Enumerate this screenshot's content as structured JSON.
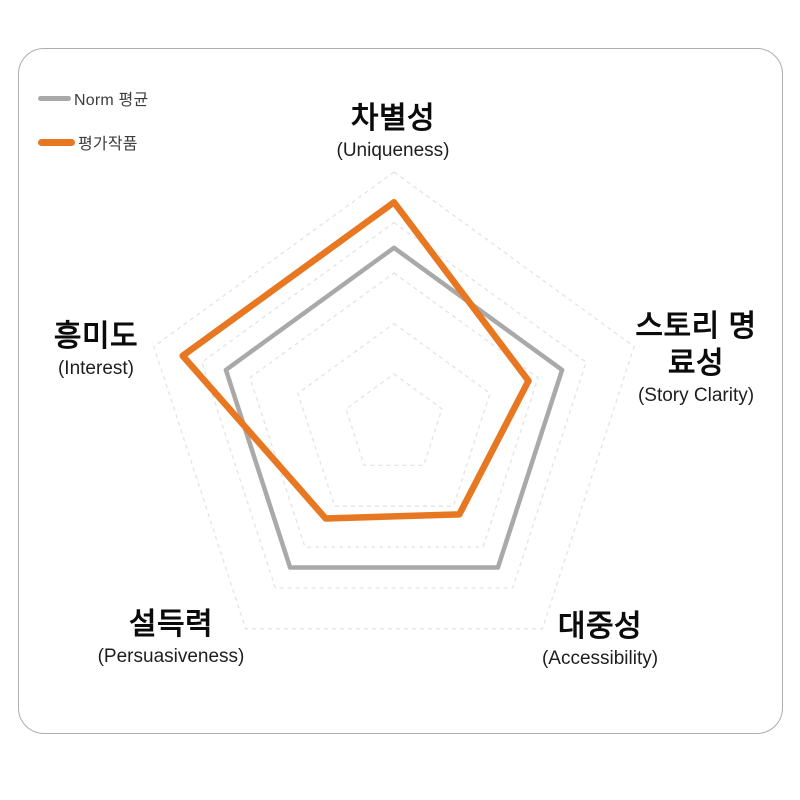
{
  "legend": {
    "items": [
      {
        "label": "Norm 평균",
        "color": "#A9A9A9"
      },
      {
        "label": "평가작품",
        "color": "#E87722"
      }
    ]
  },
  "chart_data": {
    "type": "radar",
    "categories": [
      {
        "ko": "차별성",
        "en": "(Uniqueness)"
      },
      {
        "ko": "스토리 명료성",
        "en": "(Story Clarity)"
      },
      {
        "ko": "대중성",
        "en": "(Accessibility)"
      },
      {
        "ko": "설득력",
        "en": "(Persuasiveness)"
      },
      {
        "ko": "흥미도",
        "en": "(Interest)"
      }
    ],
    "series": [
      {
        "name": "Norm 평균",
        "color": "#A9A9A9",
        "values": [
          3.5,
          3.5,
          3.5,
          3.5,
          3.5
        ]
      },
      {
        "name": "평가작품",
        "color": "#E87722",
        "values": [
          4.4,
          2.8,
          2.2,
          2.3,
          4.4
        ]
      }
    ],
    "scale": {
      "min": 0,
      "max": 5,
      "rings": 5
    },
    "grid": {
      "shape": "pentagon",
      "style": "dashed",
      "color": "#E3E3E3"
    },
    "legend_position": "top-left",
    "title": ""
  }
}
